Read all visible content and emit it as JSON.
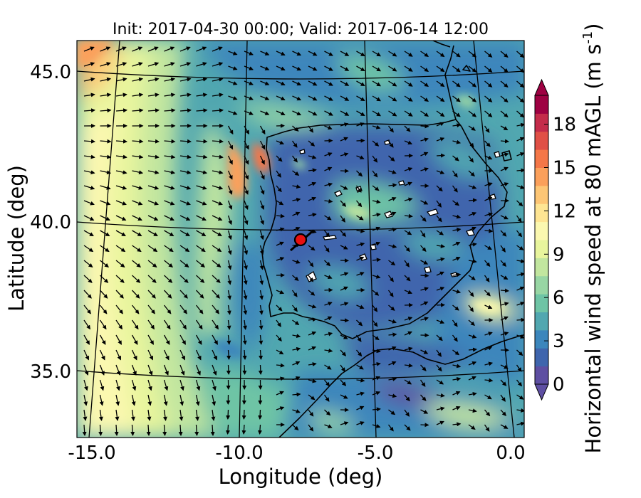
{
  "figure": {
    "title": "Init: 2017-04-30 00:00; Valid: 2017-06-14 12:00"
  },
  "axes": {
    "xlabel": "Longitude (deg)",
    "ylabel": "Latitude (deg)",
    "x_ticks": [
      "-15.0",
      "-10.0",
      "-5.0",
      "0.0"
    ],
    "y_ticks": [
      "45.0",
      "40.0",
      "35.0"
    ]
  },
  "colorbar": {
    "label": "Horizontal wind speed at 80 mAGL (m s",
    "label_exponent": "-1",
    "label_close": ")",
    "ticks": [
      "0",
      "3",
      "6",
      "9",
      "12",
      "15",
      "18"
    ],
    "tick_values": [
      0,
      3,
      6,
      9,
      12,
      15,
      18
    ],
    "range": [
      0,
      20
    ],
    "extend": "both",
    "colormap": "Spectral_r",
    "colors": [
      "#5e4fa2",
      "#3f65ad",
      "#3c86bc",
      "#51a7b0",
      "#6ec4a5",
      "#98d6a4",
      "#c2e69f",
      "#e8f59d",
      "#fbf8b0",
      "#fee593",
      "#fdc675",
      "#fba05b",
      "#f47748",
      "#e05046",
      "#c42c4a",
      "#9e0142"
    ]
  },
  "map": {
    "type": "filled-contour-with-wind-vectors",
    "lon_range": [
      -16,
      0.3
    ],
    "lat_range": [
      32.5,
      46
    ],
    "graticule_lons": [
      -15,
      -10,
      -5,
      0
    ],
    "graticule_lats": [
      35,
      40,
      45
    ],
    "marker": {
      "lon": -7.6,
      "lat": 39.3,
      "color": "#e81010",
      "name": "site-marker"
    }
  }
}
